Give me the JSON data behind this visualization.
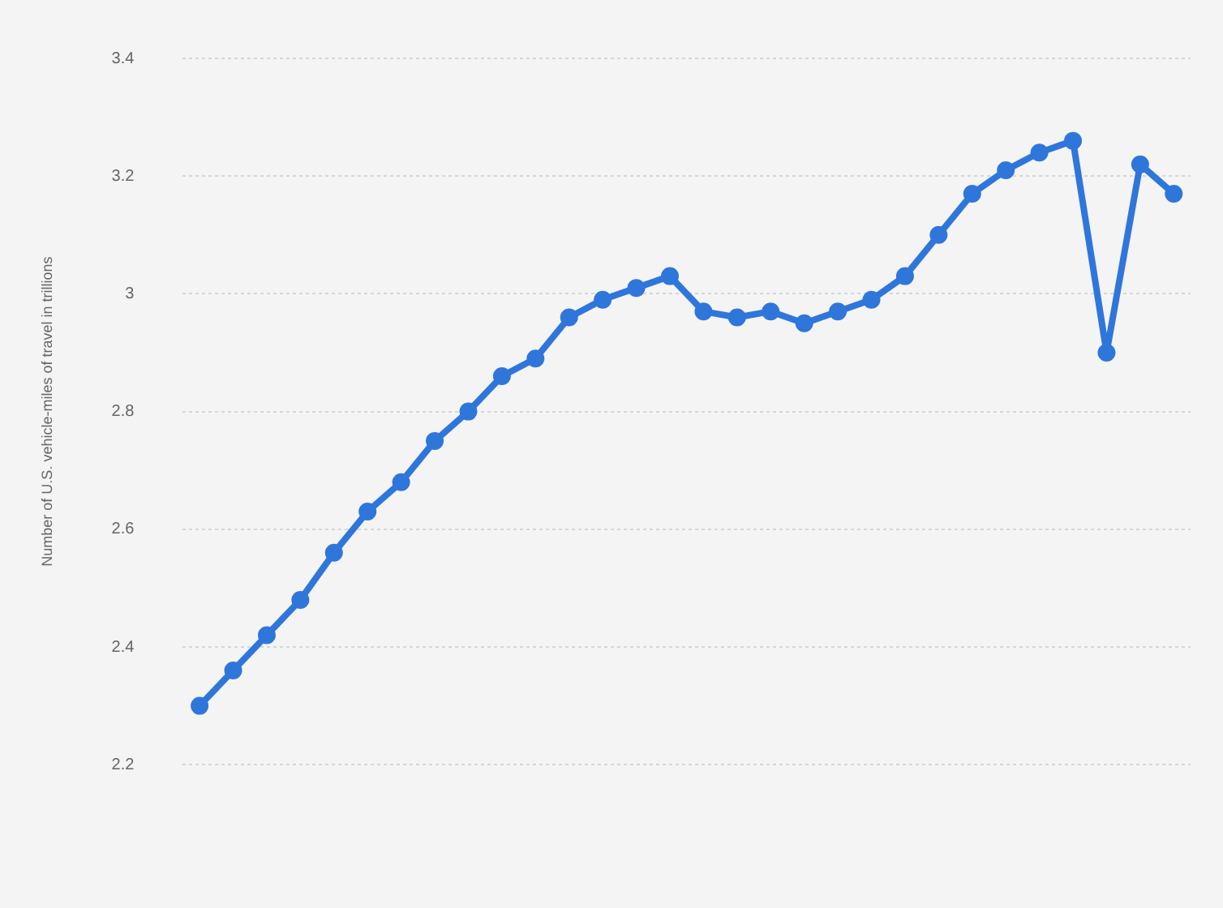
{
  "chart_data": {
    "type": "line",
    "ylabel": "Number of U.S. vehicle-miles of travel in trillions",
    "categories": [
      null,
      null,
      null,
      null,
      null,
      null,
      null,
      null,
      null,
      null,
      null,
      null,
      null,
      null,
      null,
      null,
      null,
      null,
      null,
      null,
      null,
      null,
      null,
      null,
      null,
      null,
      null,
      null,
      null,
      null
    ],
    "series": [
      {
        "color": "#2f76db",
        "values": [
          2.3,
          2.36,
          2.42,
          2.48,
          2.56,
          2.63,
          2.68,
          2.75,
          2.8,
          2.86,
          2.89,
          2.96,
          2.99,
          3.01,
          3.03,
          2.97,
          2.96,
          2.97,
          2.95,
          2.97,
          2.99,
          3.03,
          3.1,
          3.17,
          3.21,
          3.24,
          3.26,
          2.9,
          3.22,
          3.17
        ]
      }
    ],
    "ylim": [
      2.2,
      3.4
    ],
    "yticks": [
      2.2,
      2.4,
      2.6,
      2.8,
      3,
      3.2,
      3.4
    ],
    "grid": "y",
    "legend": false,
    "marker": "circle",
    "line_style": "solid"
  }
}
